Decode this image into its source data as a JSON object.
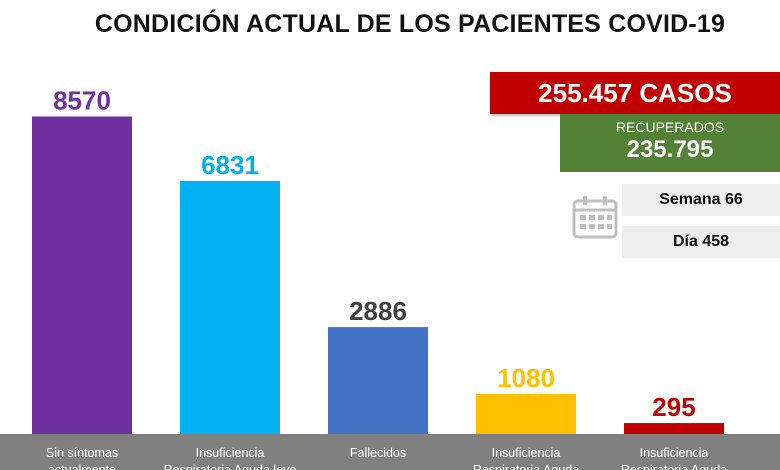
{
  "chart_data": {
    "type": "bar",
    "title": "CONDICIÓN ACTUAL DE LOS PACIENTES COVID-19",
    "categories": [
      [
        "Sin síntomas",
        "actualmente"
      ],
      [
        "Insuficiencia",
        "Respiratoria Aguda leve"
      ],
      [
        "Fallecidos"
      ],
      [
        "Insuficiencia",
        "Respiratoria Aguda"
      ],
      [
        "Insuficiencia",
        "Respiratoria Aguda"
      ]
    ],
    "values": [
      8570,
      6831,
      2886,
      1080,
      295
    ],
    "value_labels": [
      "8570",
      "6831",
      "2886",
      "1080",
      "295"
    ],
    "colors": [
      "#7030a0",
      "#00b0f0",
      "#4472c4",
      "#ffc000",
      "#c00000"
    ],
    "value_label_colors": [
      "#7030a0",
      "#00b0f0",
      "#404040",
      "#ffc000",
      "#c00000"
    ],
    "ylim": [
      0,
      8800
    ],
    "grid": false,
    "xlabel": "",
    "ylabel": ""
  },
  "summary": {
    "cases_label": "255.457 CASOS",
    "recovered_label": "RECUPERADOS",
    "recovered_value": "235.795",
    "week_label": "Semana 66",
    "day_label": "Día 458",
    "cases_color": "#c00000",
    "recovered_color": "#538135"
  },
  "icons": {
    "calendar": "calendar-icon"
  }
}
